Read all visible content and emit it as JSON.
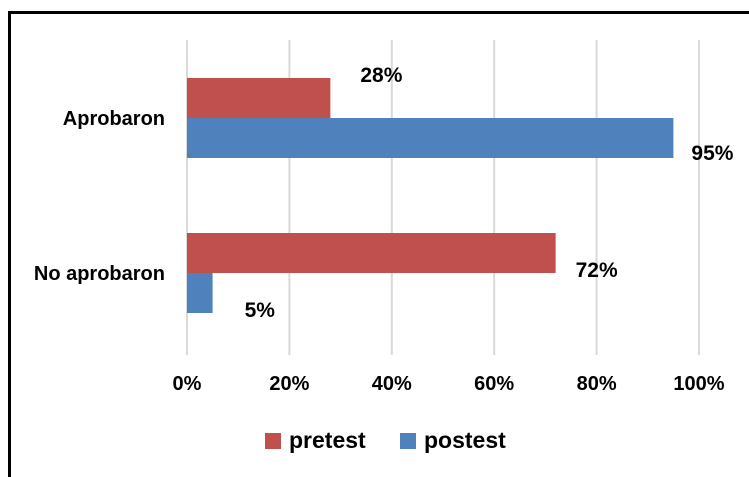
{
  "chart_data": {
    "type": "bar",
    "orientation": "horizontal",
    "categories": [
      "Aprobaron",
      "No aprobaron"
    ],
    "series": [
      {
        "name": "pretest",
        "values": [
          28,
          72
        ],
        "color": "#c0504d"
      },
      {
        "name": "postest",
        "values": [
          95,
          5
        ],
        "color": "#4f81bd"
      }
    ],
    "data_labels": [
      [
        "28%",
        "72%"
      ],
      [
        "95%",
        "5%"
      ]
    ],
    "xlim": [
      0,
      100
    ],
    "xticks": [
      "0%",
      "20%",
      "40%",
      "60%",
      "80%",
      "100%"
    ],
    "grid": true,
    "legend_position": "bottom"
  }
}
